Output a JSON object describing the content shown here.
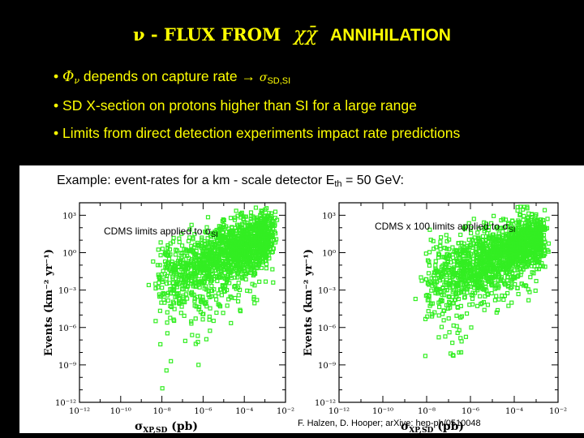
{
  "slide": {
    "title_prefix": "ν - FLUX FROM",
    "title_symbol": "χχ̄",
    "title_suffix": "ANNIHILATION",
    "bullets": [
      {
        "bullet": "•",
        "phi": "Φ",
        "phi_sub": "ν",
        "text": " depends on capture rate → ",
        "sigma": "σ",
        "sigma_sub": "SD,SI"
      },
      {
        "bullet": "•",
        "text": "SD X-section on protons higher than SI for a large range"
      },
      {
        "bullet": "•",
        "text": "Limits from direct detection experiments impact rate predictions"
      }
    ],
    "example_text": "Example: event-rates for a km - scale detector E",
    "example_sub": "th",
    "example_tail": " = 50 GeV:",
    "credit": "F. Halzen, D. Hooper; arXive: hep-ph/0510048"
  },
  "colors": {
    "background": "#000000",
    "text": "#ffff00",
    "points": "#33ee22"
  },
  "chart_data": [
    {
      "type": "scatter",
      "annotation": "CDMS limits applied to σ",
      "annotation_sub": "SI",
      "xlabel": "σ",
      "xlabel_sub": "XP,SD",
      "xlabel_tail": " (pb)",
      "ylabel": "Events (km⁻² yr⁻¹)",
      "x_scale": "log",
      "y_scale": "log",
      "xlim_exp": [
        -12,
        -2
      ],
      "ylim_exp": [
        -12,
        4
      ],
      "x_ticks": [
        "10⁻¹²",
        "10⁻¹⁰",
        "10⁻⁸",
        "10⁻⁶",
        "10⁻⁴",
        "10⁻²"
      ],
      "y_ticks": [
        "10⁻¹²",
        "10⁻⁹",
        "10⁻⁶",
        "10⁻³",
        "10⁰",
        "10³"
      ],
      "series": [
        {
          "values": "dense scatter rising from ~(10⁻⁸,10⁻⁹) to ~(10⁻³,10²)"
        }
      ]
    },
    {
      "type": "scatter",
      "annotation": "CDMS x 100 limits applied to σ",
      "annotation_sub": "SI",
      "xlabel": "σ",
      "xlabel_sub": "XP,SD",
      "xlabel_tail": " (pb)",
      "ylabel": "Events (km⁻² yr⁻¹)",
      "x_scale": "log",
      "y_scale": "log",
      "xlim_exp": [
        -12,
        -2
      ],
      "ylim_exp": [
        -12,
        4
      ],
      "x_ticks": [
        "10⁻¹²",
        "10⁻¹⁰",
        "10⁻⁸",
        "10⁻⁶",
        "10⁻⁴",
        "10⁻²"
      ],
      "y_ticks": [
        "10⁻¹²",
        "10⁻⁹",
        "10⁻⁶",
        "10⁻³",
        "10⁰",
        "10³"
      ],
      "series": [
        {
          "values": "dense scatter rising from ~(10⁻⁸,10⁻⁹) to ~(10⁻³,10²)"
        }
      ]
    }
  ]
}
